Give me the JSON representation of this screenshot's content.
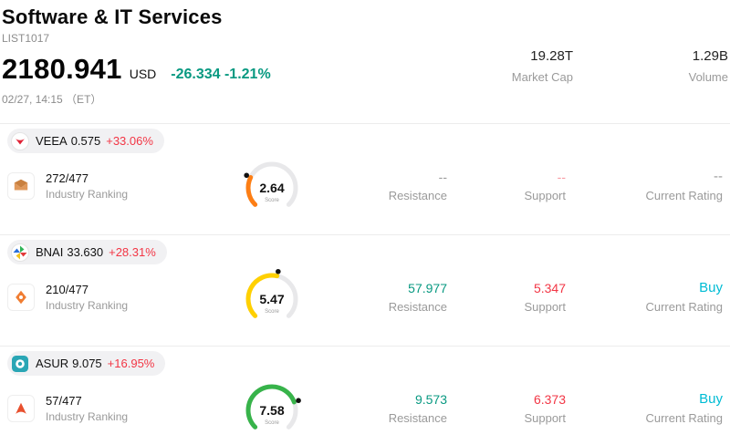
{
  "colors": {
    "up_green": "#089981",
    "down_red": "#f23645",
    "buy_teal": "#00bcd4",
    "muted_gray": "#9a9a9a",
    "gauge_track": "#e8e8ea"
  },
  "header": {
    "title": "Software & IT Services",
    "list_id": "LIST1017",
    "price": "2180.941",
    "currency": "USD",
    "change": "-26.334 -1.21%",
    "timestamp": "02/27, 14:15 （ET）",
    "market_cap_value": "19.28T",
    "market_cap_label": "Market Cap",
    "volume_value": "1.29B",
    "volume_label": "Volume"
  },
  "rows": [
    {
      "ticker": "VEEA",
      "price": "0.575",
      "change_pct": "+33.06%",
      "industry_ranking": "272/477",
      "industry_ranking_label": "Industry Ranking",
      "score": "2.64",
      "score_label": "Score",
      "gauge_color": "#fd7e14",
      "resistance_value": "--",
      "resistance_label": "Resistance",
      "support_value": "--",
      "support_label": "Support",
      "rating_value": "--",
      "rating_label": "Current Rating"
    },
    {
      "ticker": "BNAI",
      "price": "33.630",
      "change_pct": "+28.31%",
      "industry_ranking": "210/477",
      "industry_ranking_label": "Industry Ranking",
      "score": "5.47",
      "score_label": "Score",
      "gauge_color": "#ffd000",
      "resistance_value": "57.977",
      "resistance_label": "Resistance",
      "support_value": "5.347",
      "support_label": "Support",
      "rating_value": "Buy",
      "rating_label": "Current Rating"
    },
    {
      "ticker": "ASUR",
      "price": "9.075",
      "change_pct": "+16.95%",
      "industry_ranking": "57/477",
      "industry_ranking_label": "Industry Ranking",
      "score": "7.58",
      "score_label": "Score",
      "gauge_color": "#37b34a",
      "resistance_value": "9.573",
      "resistance_label": "Resistance",
      "support_value": "6.373",
      "support_label": "Support",
      "rating_value": "Buy",
      "rating_label": "Current Rating"
    }
  ]
}
